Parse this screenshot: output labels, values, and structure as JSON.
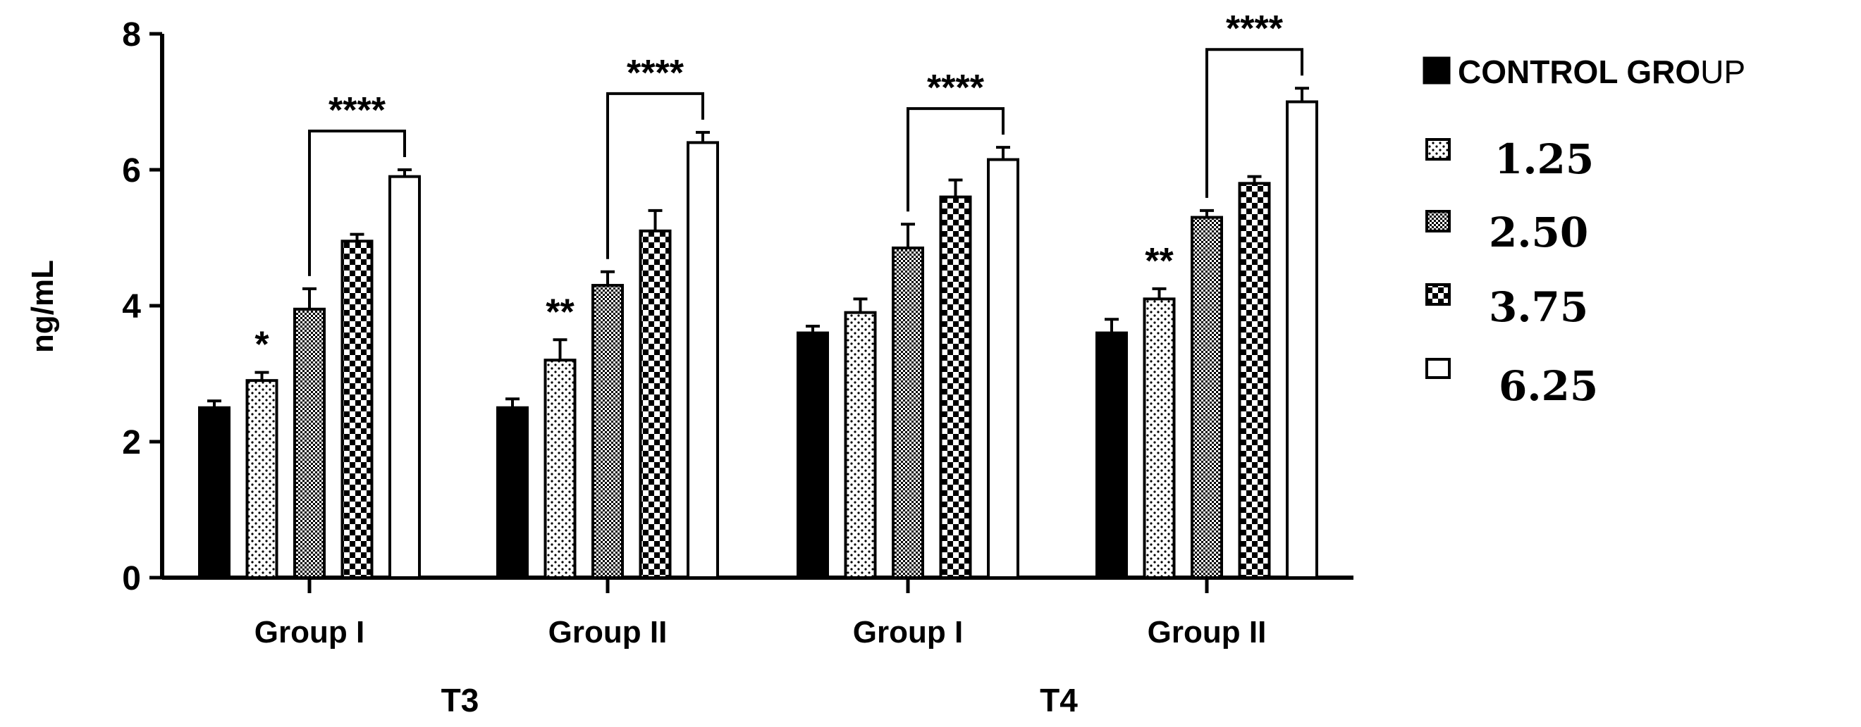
{
  "chart_data": {
    "type": "bar",
    "ylabel": "ng/mL",
    "xlabel": "",
    "ylim": [
      0,
      8
    ],
    "yticks": [
      0,
      2,
      4,
      6,
      8
    ],
    "grid": false,
    "legend_position": "right",
    "legend_title": "",
    "series": [
      {
        "name": "CONTROL GROUP",
        "pattern": "solid",
        "values": [
          2.5,
          2.5,
          3.6,
          3.6
        ],
        "errors": [
          0.1,
          0.13,
          0.1,
          0.2
        ]
      },
      {
        "name": "1.25",
        "pattern": "dots",
        "values": [
          2.9,
          3.2,
          3.9,
          4.1
        ],
        "errors": [
          0.12,
          0.3,
          0.2,
          0.15
        ]
      },
      {
        "name": "2.50",
        "pattern": "fine-check",
        "values": [
          3.95,
          4.3,
          4.85,
          5.3
        ],
        "errors": [
          0.3,
          0.2,
          0.35,
          0.1
        ]
      },
      {
        "name": "3.75",
        "pattern": "checker",
        "values": [
          4.95,
          5.1,
          5.6,
          5.8
        ],
        "errors": [
          0.1,
          0.3,
          0.25,
          0.1
        ]
      },
      {
        "name": "6.25",
        "pattern": "white",
        "values": [
          5.9,
          6.4,
          6.15,
          7.0
        ],
        "errors": [
          0.1,
          0.15,
          0.18,
          0.2
        ]
      }
    ],
    "groups": [
      {
        "label": "Group I",
        "hormone": "T3"
      },
      {
        "label": "Group II",
        "hormone": "T3"
      },
      {
        "label": "Group I",
        "hormone": "T4"
      },
      {
        "label": "Group II",
        "hormone": "T4"
      }
    ],
    "super_categories": [
      {
        "label": "T3",
        "groups": [
          0,
          1
        ]
      },
      {
        "label": "T4",
        "groups": [
          2,
          3
        ]
      }
    ],
    "significance": [
      {
        "group": 0,
        "series": 1,
        "label": "*"
      },
      {
        "group": 1,
        "series": 1,
        "label": "**"
      },
      {
        "group": 3,
        "series": 1,
        "label": "**"
      }
    ],
    "brackets": [
      {
        "group": 0,
        "from_series": 2,
        "to_series": 4,
        "label": "****"
      },
      {
        "group": 1,
        "from_series": 2,
        "to_series": 4,
        "label": "****"
      },
      {
        "group": 2,
        "from_series": 2,
        "to_series": 4,
        "label": "****"
      },
      {
        "group": 3,
        "from_series": 2,
        "to_series": 4,
        "label": "****"
      }
    ],
    "legend": {
      "control_label_bold": "CONTROL GROUP",
      "control_label_part1": "CONTROL GRO",
      "control_label_part2": "UP"
    }
  }
}
